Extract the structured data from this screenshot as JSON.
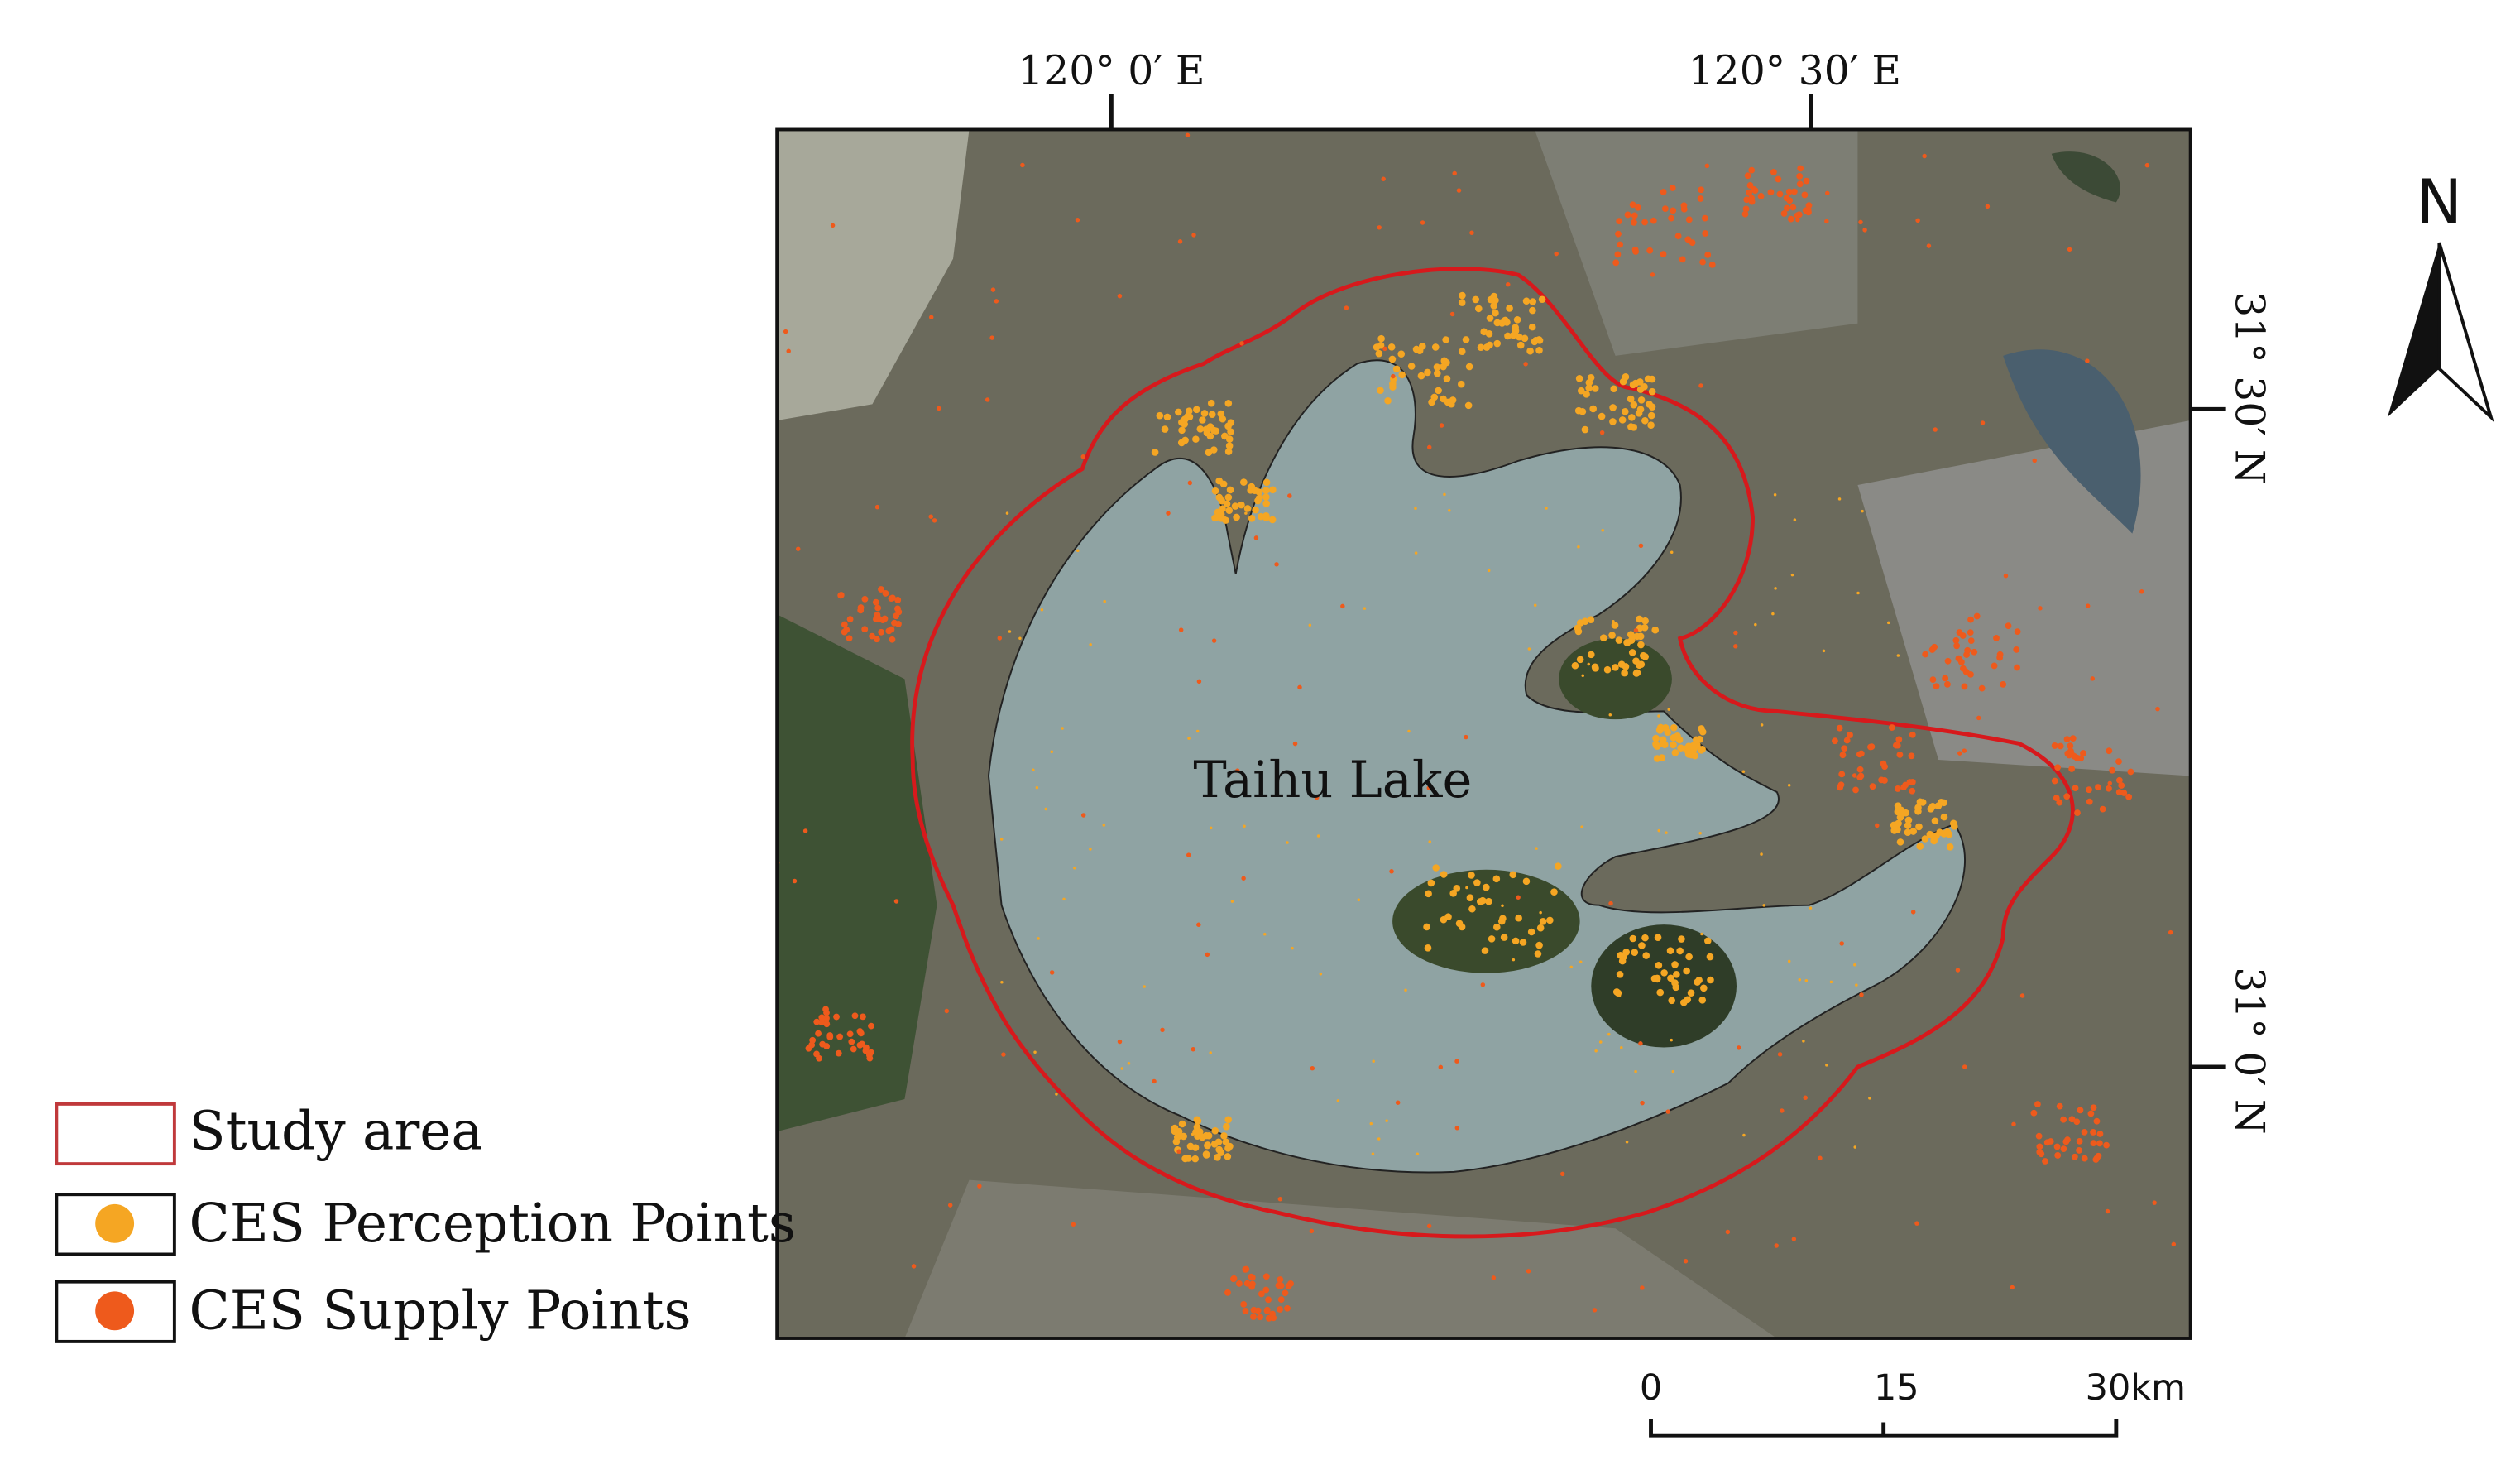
{
  "map": {
    "graticule": {
      "longitude": [
        "120° 0′ E",
        "120° 30′ E"
      ],
      "latitude": [
        "31° 30′ N",
        "31° 0′ N"
      ]
    },
    "lake_label": "Taihu Lake",
    "north_arrow": "N"
  },
  "legend": {
    "items": [
      "Study area",
      "CES Perception Points",
      "CES Supply Points"
    ]
  },
  "scale_bar": {
    "labels": [
      "0",
      "15",
      "30km"
    ]
  }
}
